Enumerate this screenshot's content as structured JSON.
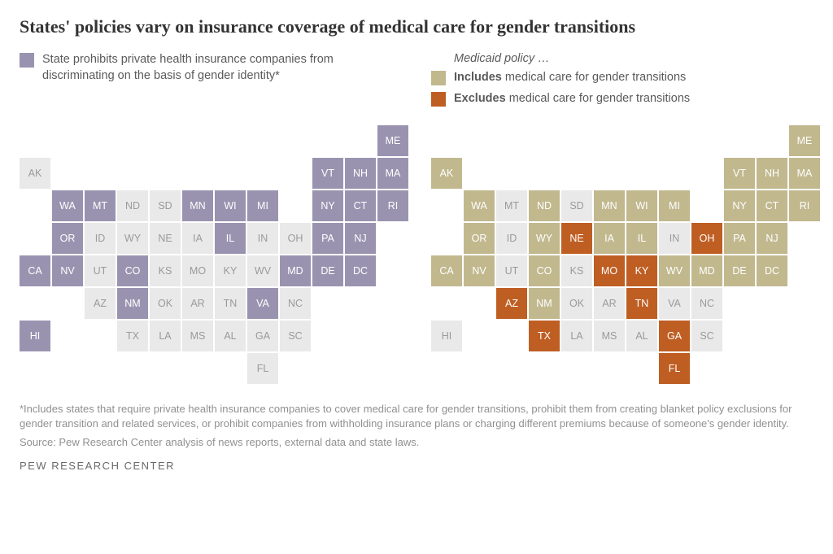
{
  "title": "States' policies vary on insurance coverage of medical care for gender transitions",
  "left_legend": {
    "swatch_color": "#9a93b0",
    "text": "State prohibits private health insurance companies from discriminating on the basis of gender identity*"
  },
  "right_legend": {
    "header": "Medicaid policy …",
    "include": {
      "swatch_color": "#c1b88e",
      "bold": "Includes",
      "rest": " medical care for gender transitions"
    },
    "exclude": {
      "swatch_color": "#bf5e23",
      "bold": "Excludes",
      "rest": " medical care for gender transitions"
    }
  },
  "footnote": "*Includes states that require private health insurance companies to cover medical care for gender transitions, prohibit them from creating blanket policy exclusions for gender transition and related services, or prohibit companies from withholding insurance plans or charging different premiums because of someone's gender identity.",
  "source": "Source: Pew Research Center analysis of news reports, external data and state laws.",
  "brand": "PEW RESEARCH CENTER",
  "layout": {
    "cols": 12,
    "rows": 8,
    "cell_size": 38,
    "gap": 2,
    "label_fontsize": 12.5
  },
  "colors": {
    "none_bg": "#e9e9e9",
    "none_text": "#9a9a9a",
    "purple_bg": "#9a93b0",
    "purple_text": "#ffffff",
    "tan_bg": "#c1b88e",
    "tan_text": "#ffffff",
    "orange_bg": "#bf5e23",
    "orange_text": "#ffffff",
    "title_color": "#333333",
    "title_fontsize": 22,
    "legend_fontsize": 14.5,
    "foot_fontsize": 13,
    "brand_fontsize": 13
  },
  "states": [
    {
      "code": "ME",
      "row": 0,
      "col": 11,
      "left": "purple",
      "right": "tan"
    },
    {
      "code": "AK",
      "row": 1,
      "col": 0,
      "left": "none",
      "right": "tan"
    },
    {
      "code": "VT",
      "row": 1,
      "col": 9,
      "left": "purple",
      "right": "tan"
    },
    {
      "code": "NH",
      "row": 1,
      "col": 10,
      "left": "purple",
      "right": "tan"
    },
    {
      "code": "MA",
      "row": 1,
      "col": 11,
      "left": "purple",
      "right": "tan"
    },
    {
      "code": "WA",
      "row": 2,
      "col": 1,
      "left": "purple",
      "right": "tan"
    },
    {
      "code": "MT",
      "row": 2,
      "col": 2,
      "left": "purple",
      "right": "none"
    },
    {
      "code": "ND",
      "row": 2,
      "col": 3,
      "left": "none",
      "right": "tan"
    },
    {
      "code": "SD",
      "row": 2,
      "col": 4,
      "left": "none",
      "right": "none"
    },
    {
      "code": "MN",
      "row": 2,
      "col": 5,
      "left": "purple",
      "right": "tan"
    },
    {
      "code": "WI",
      "row": 2,
      "col": 6,
      "left": "purple",
      "right": "tan"
    },
    {
      "code": "MI",
      "row": 2,
      "col": 7,
      "left": "purple",
      "right": "tan"
    },
    {
      "code": "NY",
      "row": 2,
      "col": 9,
      "left": "purple",
      "right": "tan"
    },
    {
      "code": "CT",
      "row": 2,
      "col": 10,
      "left": "purple",
      "right": "tan"
    },
    {
      "code": "RI",
      "row": 2,
      "col": 11,
      "left": "purple",
      "right": "tan"
    },
    {
      "code": "OR",
      "row": 3,
      "col": 1,
      "left": "purple",
      "right": "tan"
    },
    {
      "code": "ID",
      "row": 3,
      "col": 2,
      "left": "none",
      "right": "none"
    },
    {
      "code": "WY",
      "row": 3,
      "col": 3,
      "left": "none",
      "right": "tan"
    },
    {
      "code": "NE",
      "row": 3,
      "col": 4,
      "left": "none",
      "right": "orange"
    },
    {
      "code": "IA",
      "row": 3,
      "col": 5,
      "left": "none",
      "right": "tan"
    },
    {
      "code": "IL",
      "row": 3,
      "col": 6,
      "left": "purple",
      "right": "tan"
    },
    {
      "code": "IN",
      "row": 3,
      "col": 7,
      "left": "none",
      "right": "none"
    },
    {
      "code": "OH",
      "row": 3,
      "col": 8,
      "left": "none",
      "right": "orange"
    },
    {
      "code": "PA",
      "row": 3,
      "col": 9,
      "left": "purple",
      "right": "tan"
    },
    {
      "code": "NJ",
      "row": 3,
      "col": 10,
      "left": "purple",
      "right": "tan"
    },
    {
      "code": "CA",
      "row": 4,
      "col": 0,
      "left": "purple",
      "right": "tan"
    },
    {
      "code": "NV",
      "row": 4,
      "col": 1,
      "left": "purple",
      "right": "tan"
    },
    {
      "code": "UT",
      "row": 4,
      "col": 2,
      "left": "none",
      "right": "none"
    },
    {
      "code": "CO",
      "row": 4,
      "col": 3,
      "left": "purple",
      "right": "tan"
    },
    {
      "code": "KS",
      "row": 4,
      "col": 4,
      "left": "none",
      "right": "none"
    },
    {
      "code": "MO",
      "row": 4,
      "col": 5,
      "left": "none",
      "right": "orange"
    },
    {
      "code": "KY",
      "row": 4,
      "col": 6,
      "left": "none",
      "right": "orange"
    },
    {
      "code": "WV",
      "row": 4,
      "col": 7,
      "left": "none",
      "right": "tan"
    },
    {
      "code": "MD",
      "row": 4,
      "col": 8,
      "left": "purple",
      "right": "tan"
    },
    {
      "code": "DE",
      "row": 4,
      "col": 9,
      "left": "purple",
      "right": "tan"
    },
    {
      "code": "DC",
      "row": 4,
      "col": 10,
      "left": "purple",
      "right": "tan"
    },
    {
      "code": "AZ",
      "row": 5,
      "col": 2,
      "left": "none",
      "right": "orange"
    },
    {
      "code": "NM",
      "row": 5,
      "col": 3,
      "left": "purple",
      "right": "tan"
    },
    {
      "code": "OK",
      "row": 5,
      "col": 4,
      "left": "none",
      "right": "none"
    },
    {
      "code": "AR",
      "row": 5,
      "col": 5,
      "left": "none",
      "right": "none"
    },
    {
      "code": "TN",
      "row": 5,
      "col": 6,
      "left": "none",
      "right": "orange"
    },
    {
      "code": "VA",
      "row": 5,
      "col": 7,
      "left": "purple",
      "right": "none"
    },
    {
      "code": "NC",
      "row": 5,
      "col": 8,
      "left": "none",
      "right": "none"
    },
    {
      "code": "HI",
      "row": 6,
      "col": 0,
      "left": "purple",
      "right": "none"
    },
    {
      "code": "TX",
      "row": 6,
      "col": 3,
      "left": "none",
      "right": "orange"
    },
    {
      "code": "LA",
      "row": 6,
      "col": 4,
      "left": "none",
      "right": "none"
    },
    {
      "code": "MS",
      "row": 6,
      "col": 5,
      "left": "none",
      "right": "none"
    },
    {
      "code": "AL",
      "row": 6,
      "col": 6,
      "left": "none",
      "right": "none"
    },
    {
      "code": "GA",
      "row": 6,
      "col": 7,
      "left": "none",
      "right": "orange"
    },
    {
      "code": "SC",
      "row": 6,
      "col": 8,
      "left": "none",
      "right": "none"
    },
    {
      "code": "FL",
      "row": 7,
      "col": 7,
      "left": "none",
      "right": "orange"
    }
  ]
}
